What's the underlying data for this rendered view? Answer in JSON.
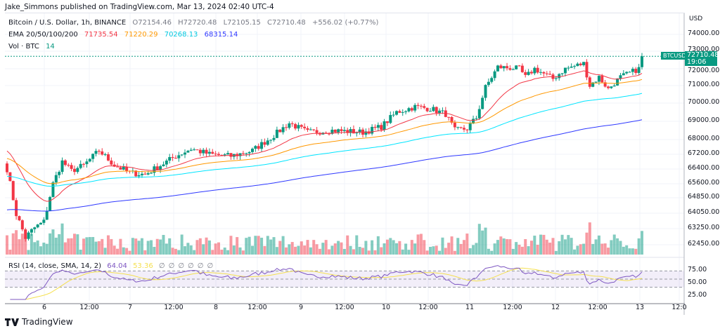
{
  "publisher": "Jake_Simmons published on TradingView.com, Mar 13, 2024 02:40 UTC-4",
  "legend": {
    "symbol": "Bitcoin / U.S. Dollar, 1h, BINANCE",
    "open": "O72154.46",
    "high": "H72720.48",
    "low": "L72105.15",
    "close": "C72710.48",
    "change": "+556.02 (+0.77%)",
    "ema_label": "EMA 20/50/100/200",
    "ema_values": [
      "71735.54",
      "71220.29",
      "70268.13",
      "68315.14"
    ],
    "ema_colors": [
      "#f23645",
      "#ff9800",
      "#00e5ff",
      "#2f39ff"
    ],
    "vol_label": "Vol · BTC",
    "vol_value": "14"
  },
  "rsi": {
    "label": "RSI (14, close, SMA, 14, 2)",
    "value": "64.04",
    "sma": "53.36",
    "placeholders": [
      "∅",
      "∅",
      "∅",
      "∅",
      "∅",
      "∅"
    ],
    "levels": [
      "75.00",
      "50.00",
      "25.00"
    ]
  },
  "price_axis": {
    "currency": "USD",
    "labels": [
      "74000.00",
      "73000.00",
      "72000.00",
      "71000.00",
      "70000.00",
      "69000.00",
      "68000.00",
      "67200.00",
      "66400.00",
      "65600.00",
      "64850.00",
      "64050.00",
      "63250.00",
      "62450.00"
    ],
    "symbol_tag": "BTCUSD",
    "last_price": "72710.48",
    "countdown": "19:06"
  },
  "time_axis": [
    "6",
    "12:00",
    "7",
    "12:00",
    "8",
    "12:00",
    "9",
    "12:00",
    "10",
    "12:00",
    "11",
    "12:00",
    "12",
    "12:00",
    "13",
    "12:0"
  ],
  "colors": {
    "up": "#089981",
    "down": "#f23645",
    "rsi": "#7e57c2",
    "rsi_sma": "#f5e050"
  },
  "chart_data": {
    "type": "candlestick",
    "interval": "1h",
    "price_keypoints": [
      [
        0,
        66400
      ],
      [
        3,
        64000
      ],
      [
        6,
        62800
      ],
      [
        9,
        63300
      ],
      [
        12,
        63600
      ],
      [
        15,
        65600
      ],
      [
        18,
        66800
      ],
      [
        21,
        66300
      ],
      [
        25,
        66600
      ],
      [
        30,
        67400
      ],
      [
        35,
        66600
      ],
      [
        40,
        66200
      ],
      [
        45,
        66100
      ],
      [
        50,
        66600
      ],
      [
        55,
        67100
      ],
      [
        60,
        67500
      ],
      [
        66,
        67200
      ],
      [
        73,
        67100
      ],
      [
        80,
        67400
      ],
      [
        86,
        68100
      ],
      [
        92,
        68900
      ],
      [
        98,
        68400
      ],
      [
        106,
        68500
      ],
      [
        116,
        68400
      ],
      [
        122,
        68700
      ],
      [
        127,
        69500
      ],
      [
        133,
        69800
      ],
      [
        138,
        69700
      ],
      [
        143,
        69400
      ],
      [
        146,
        68500
      ],
      [
        150,
        68600
      ],
      [
        153,
        69200
      ],
      [
        156,
        70900
      ],
      [
        160,
        72100
      ],
      [
        167,
        72000
      ],
      [
        169,
        71500
      ],
      [
        172,
        72000
      ],
      [
        178,
        71400
      ],
      [
        182,
        72000
      ],
      [
        188,
        72300
      ],
      [
        190,
        71000
      ],
      [
        193,
        71500
      ],
      [
        196,
        70800
      ],
      [
        200,
        71500
      ],
      [
        206,
        72000
      ],
      [
        207,
        72710
      ]
    ]
  },
  "footer": {
    "brand": "TradingView"
  }
}
